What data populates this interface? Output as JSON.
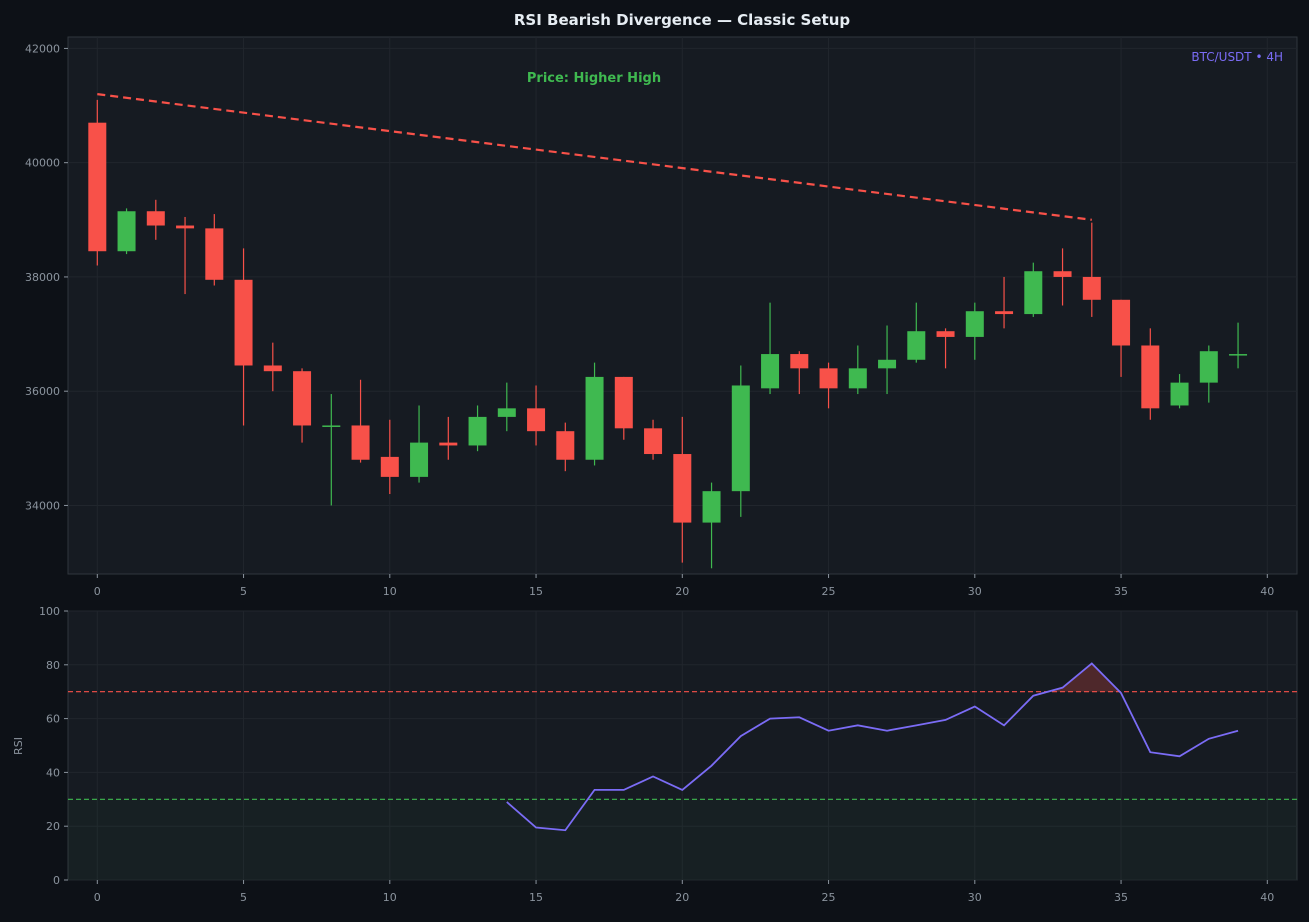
{
  "title": "RSI Bearish Divergence — Classic Setup",
  "colors": {
    "background": "#0d1117",
    "panel": "#161b22",
    "grid": "#21262d",
    "up": "#3fb950",
    "down": "#f85149",
    "rsi_line": "#7b6cf6",
    "overbought": "#f85149",
    "oversold": "#3fb950"
  },
  "chart_data": [
    {
      "type": "candlestick",
      "title": "RSI Bearish Divergence — Classic Setup",
      "pair_label": "BTC/USDT • 4H",
      "annotation": "Price: Higher High",
      "xlim": [
        -2,
        41
      ],
      "ylim": [
        32800,
        42200
      ],
      "xticks": [
        0,
        5,
        10,
        15,
        20,
        25,
        30,
        35,
        40
      ],
      "yticks": [
        34000,
        36000,
        38000,
        40000,
        42000
      ],
      "grid": true,
      "candles": [
        {
          "x": 0,
          "open": 40700,
          "high": 41100,
          "low": 38200,
          "close": 38450
        },
        {
          "x": 1,
          "open": 38450,
          "high": 39200,
          "low": 38400,
          "close": 39150
        },
        {
          "x": 2,
          "open": 39150,
          "high": 39350,
          "low": 38650,
          "close": 38900
        },
        {
          "x": 3,
          "open": 38900,
          "high": 39050,
          "low": 37700,
          "close": 38850
        },
        {
          "x": 4,
          "open": 38850,
          "high": 39100,
          "low": 37850,
          "close": 37950
        },
        {
          "x": 5,
          "open": 37950,
          "high": 38500,
          "low": 35400,
          "close": 36450
        },
        {
          "x": 6,
          "open": 36450,
          "high": 36850,
          "low": 36000,
          "close": 36350
        },
        {
          "x": 7,
          "open": 36350,
          "high": 36400,
          "low": 35100,
          "close": 35400
        },
        {
          "x": 8,
          "open": 35400,
          "high": 35950,
          "low": 34000,
          "close": 35400
        },
        {
          "x": 9,
          "open": 35400,
          "high": 36200,
          "low": 34750,
          "close": 34800
        },
        {
          "x": 10,
          "open": 34850,
          "high": 35500,
          "low": 34200,
          "close": 34500
        },
        {
          "x": 11,
          "open": 34500,
          "high": 35750,
          "low": 34400,
          "close": 35100
        },
        {
          "x": 12,
          "open": 35100,
          "high": 35550,
          "low": 34800,
          "close": 35050
        },
        {
          "x": 13,
          "open": 35050,
          "high": 35750,
          "low": 34950,
          "close": 35550
        },
        {
          "x": 14,
          "open": 35550,
          "high": 36150,
          "low": 35300,
          "close": 35700
        },
        {
          "x": 15,
          "open": 35700,
          "high": 36100,
          "low": 35050,
          "close": 35300
        },
        {
          "x": 16,
          "open": 35300,
          "high": 35450,
          "low": 34600,
          "close": 34800
        },
        {
          "x": 17,
          "open": 34800,
          "high": 36500,
          "low": 34700,
          "close": 36250
        },
        {
          "x": 18,
          "open": 36250,
          "high": 36250,
          "low": 35150,
          "close": 35350
        },
        {
          "x": 19,
          "open": 35350,
          "high": 35500,
          "low": 34800,
          "close": 34900
        },
        {
          "x": 20,
          "open": 34900,
          "high": 35550,
          "low": 33000,
          "close": 33700
        },
        {
          "x": 21,
          "open": 33700,
          "high": 34400,
          "low": 32900,
          "close": 34250
        },
        {
          "x": 22,
          "open": 34250,
          "high": 36450,
          "low": 33800,
          "close": 36100
        },
        {
          "x": 23,
          "open": 36050,
          "high": 37550,
          "low": 35950,
          "close": 36650
        },
        {
          "x": 24,
          "open": 36650,
          "high": 36700,
          "low": 35950,
          "close": 36400
        },
        {
          "x": 25,
          "open": 36400,
          "high": 36500,
          "low": 35700,
          "close": 36050
        },
        {
          "x": 26,
          "open": 36050,
          "high": 36800,
          "low": 35950,
          "close": 36400
        },
        {
          "x": 27,
          "open": 36400,
          "high": 37150,
          "low": 35950,
          "close": 36550
        },
        {
          "x": 28,
          "open": 36550,
          "high": 37550,
          "low": 36500,
          "close": 37050
        },
        {
          "x": 29,
          "open": 37050,
          "high": 37100,
          "low": 36400,
          "close": 36950
        },
        {
          "x": 30,
          "open": 36950,
          "high": 37550,
          "low": 36550,
          "close": 37400
        },
        {
          "x": 31,
          "open": 37400,
          "high": 38000,
          "low": 37100,
          "close": 37350
        },
        {
          "x": 32,
          "open": 37350,
          "high": 38250,
          "low": 37300,
          "close": 38100
        },
        {
          "x": 33,
          "open": 38100,
          "high": 38500,
          "low": 37500,
          "close": 38000
        },
        {
          "x": 34,
          "open": 38000,
          "high": 38950,
          "low": 37300,
          "close": 37600
        },
        {
          "x": 35,
          "open": 37600,
          "high": 37600,
          "low": 36250,
          "close": 36800
        },
        {
          "x": 36,
          "open": 36800,
          "high": 37100,
          "low": 35500,
          "close": 35700
        },
        {
          "x": 37,
          "open": 35750,
          "high": 36300,
          "low": 35700,
          "close": 36150
        },
        {
          "x": 38,
          "open": 36150,
          "high": 36800,
          "low": 35800,
          "close": 36700
        },
        {
          "x": 39,
          "open": 36650,
          "high": 37200,
          "low": 36400,
          "close": 36650
        }
      ],
      "divergence_line": {
        "from": [
          0,
          41200
        ],
        "to": [
          34,
          39000
        ],
        "style": "dashed",
        "color": "#f85149"
      }
    },
    {
      "type": "line",
      "ylabel": "RSI",
      "xlim": [
        -2,
        41
      ],
      "ylim": [
        0,
        100
      ],
      "xticks": [
        0,
        5,
        10,
        15,
        20,
        25,
        30,
        35,
        40
      ],
      "yticks": [
        0,
        20,
        40,
        60,
        80,
        100
      ],
      "grid": true,
      "overbought": 70,
      "oversold": 30,
      "series": [
        {
          "x": [
            14,
            15,
            16,
            17,
            18,
            19,
            20,
            21,
            22,
            23,
            24,
            25,
            26,
            27,
            28,
            29,
            30,
            31,
            32,
            33,
            34,
            35,
            36,
            37,
            38,
            39
          ],
          "values": [
            29,
            19.5,
            18.5,
            33.5,
            33.5,
            38.5,
            33.5,
            42.5,
            53.5,
            60,
            60.5,
            55.5,
            57.5,
            55.5,
            57.5,
            59.5,
            64.5,
            57.5,
            68.5,
            71.5,
            80.5,
            69.5,
            47.5,
            46,
            52.5,
            55.5
          ]
        }
      ]
    }
  ]
}
